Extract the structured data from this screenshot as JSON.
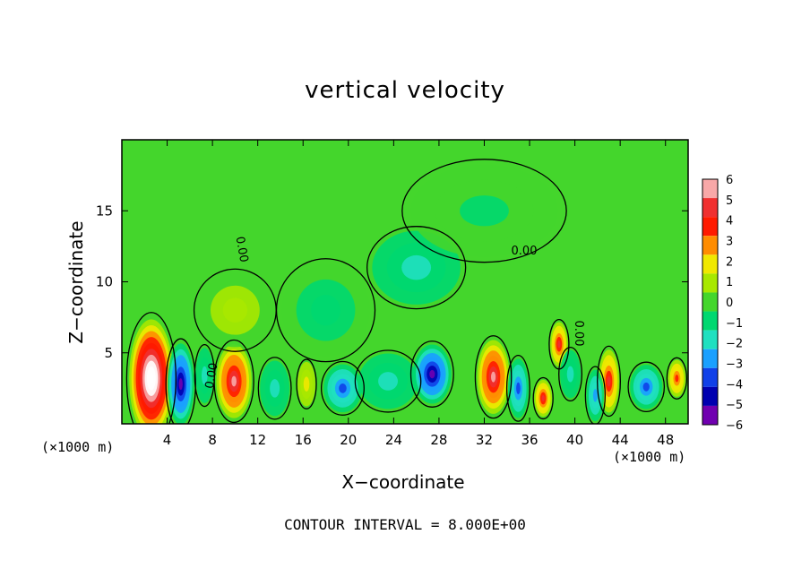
{
  "chart_data": {
    "type": "heatmap",
    "title": "vertical velocity",
    "xlabel": "X−coordinate",
    "ylabel": "Z−coordinate",
    "x_unit_label": "(×1000 m)",
    "xlim": [
      0,
      50
    ],
    "ylim": [
      0,
      20
    ],
    "x_ticks": [
      "4",
      "8",
      "12",
      "16",
      "20",
      "24",
      "28",
      "32",
      "36",
      "40",
      "44",
      "48"
    ],
    "y_ticks": [
      "5",
      "10",
      "15"
    ],
    "contour_label": "0.00",
    "contour_note": "CONTOUR INTERVAL = 8.000E+00",
    "colorbar": {
      "labels": [
        "6",
        "5",
        "4",
        "3",
        "2",
        "1",
        "0",
        "−1",
        "−2",
        "−3",
        "−4",
        "−5",
        "−6"
      ],
      "colors": [
        "#f8a8a8",
        "#f03030",
        "#ff1a00",
        "#ff8c00",
        "#f0e800",
        "#a8e800",
        "#44d62c",
        "#00d870",
        "#20e0c0",
        "#1aa0ff",
        "#1040e8",
        "#0000b0",
        "#7000b0"
      ]
    },
    "background_color": "#44d62c",
    "features": [
      {
        "x": 2.6,
        "z": 3.2,
        "value": 9,
        "sx": 1.5,
        "sz": 3.2
      },
      {
        "x": 5.2,
        "z": 2.8,
        "value": -6,
        "sx": 0.9,
        "sz": 2.2
      },
      {
        "x": 9.9,
        "z": 3.0,
        "value": 6,
        "sx": 1.2,
        "sz": 2.0
      },
      {
        "x": 7.3,
        "z": 3.4,
        "value": -2,
        "sx": 0.6,
        "sz": 1.5
      },
      {
        "x": 13.5,
        "z": 2.5,
        "value": -2,
        "sx": 1.0,
        "sz": 1.5
      },
      {
        "x": 16.3,
        "z": 2.8,
        "value": 2,
        "sx": 0.6,
        "sz": 1.2
      },
      {
        "x": 19.5,
        "z": 2.5,
        "value": -4,
        "sx": 1.3,
        "sz": 1.3
      },
      {
        "x": 23.5,
        "z": 3.0,
        "value": -2,
        "sx": 2.0,
        "sz": 1.5
      },
      {
        "x": 27.4,
        "z": 3.5,
        "value": -6,
        "sx": 1.3,
        "sz": 1.6
      },
      {
        "x": 32.8,
        "z": 3.3,
        "value": 6,
        "sx": 1.1,
        "sz": 2.0
      },
      {
        "x": 35.0,
        "z": 2.5,
        "value": -4,
        "sx": 0.7,
        "sz": 1.6
      },
      {
        "x": 37.2,
        "z": 1.8,
        "value": 5,
        "sx": 0.6,
        "sz": 1.0
      },
      {
        "x": 38.6,
        "z": 5.6,
        "value": 5,
        "sx": 0.6,
        "sz": 1.2
      },
      {
        "x": 39.6,
        "z": 3.5,
        "value": -2,
        "sx": 0.7,
        "sz": 1.3
      },
      {
        "x": 43.0,
        "z": 3.0,
        "value": 5,
        "sx": 0.7,
        "sz": 1.7
      },
      {
        "x": 41.8,
        "z": 2.0,
        "value": -3,
        "sx": 0.6,
        "sz": 1.4
      },
      {
        "x": 46.3,
        "z": 2.6,
        "value": -4,
        "sx": 1.1,
        "sz": 1.2
      },
      {
        "x": 49.0,
        "z": 3.2,
        "value": 4,
        "sx": 0.6,
        "sz": 1.0
      },
      {
        "x": 26.0,
        "z": 11.0,
        "value": -1.5,
        "sx": 3.0,
        "sz": 2.0
      },
      {
        "x": 18.0,
        "z": 8.0,
        "value": -1,
        "sx": 3.0,
        "sz": 2.5
      },
      {
        "x": 10.0,
        "z": 8.0,
        "value": 1,
        "sx": 2.5,
        "sz": 2.0
      },
      {
        "x": 32.0,
        "z": 15.0,
        "value": -0.7,
        "sx": 5.0,
        "sz": 2.5
      }
    ]
  }
}
